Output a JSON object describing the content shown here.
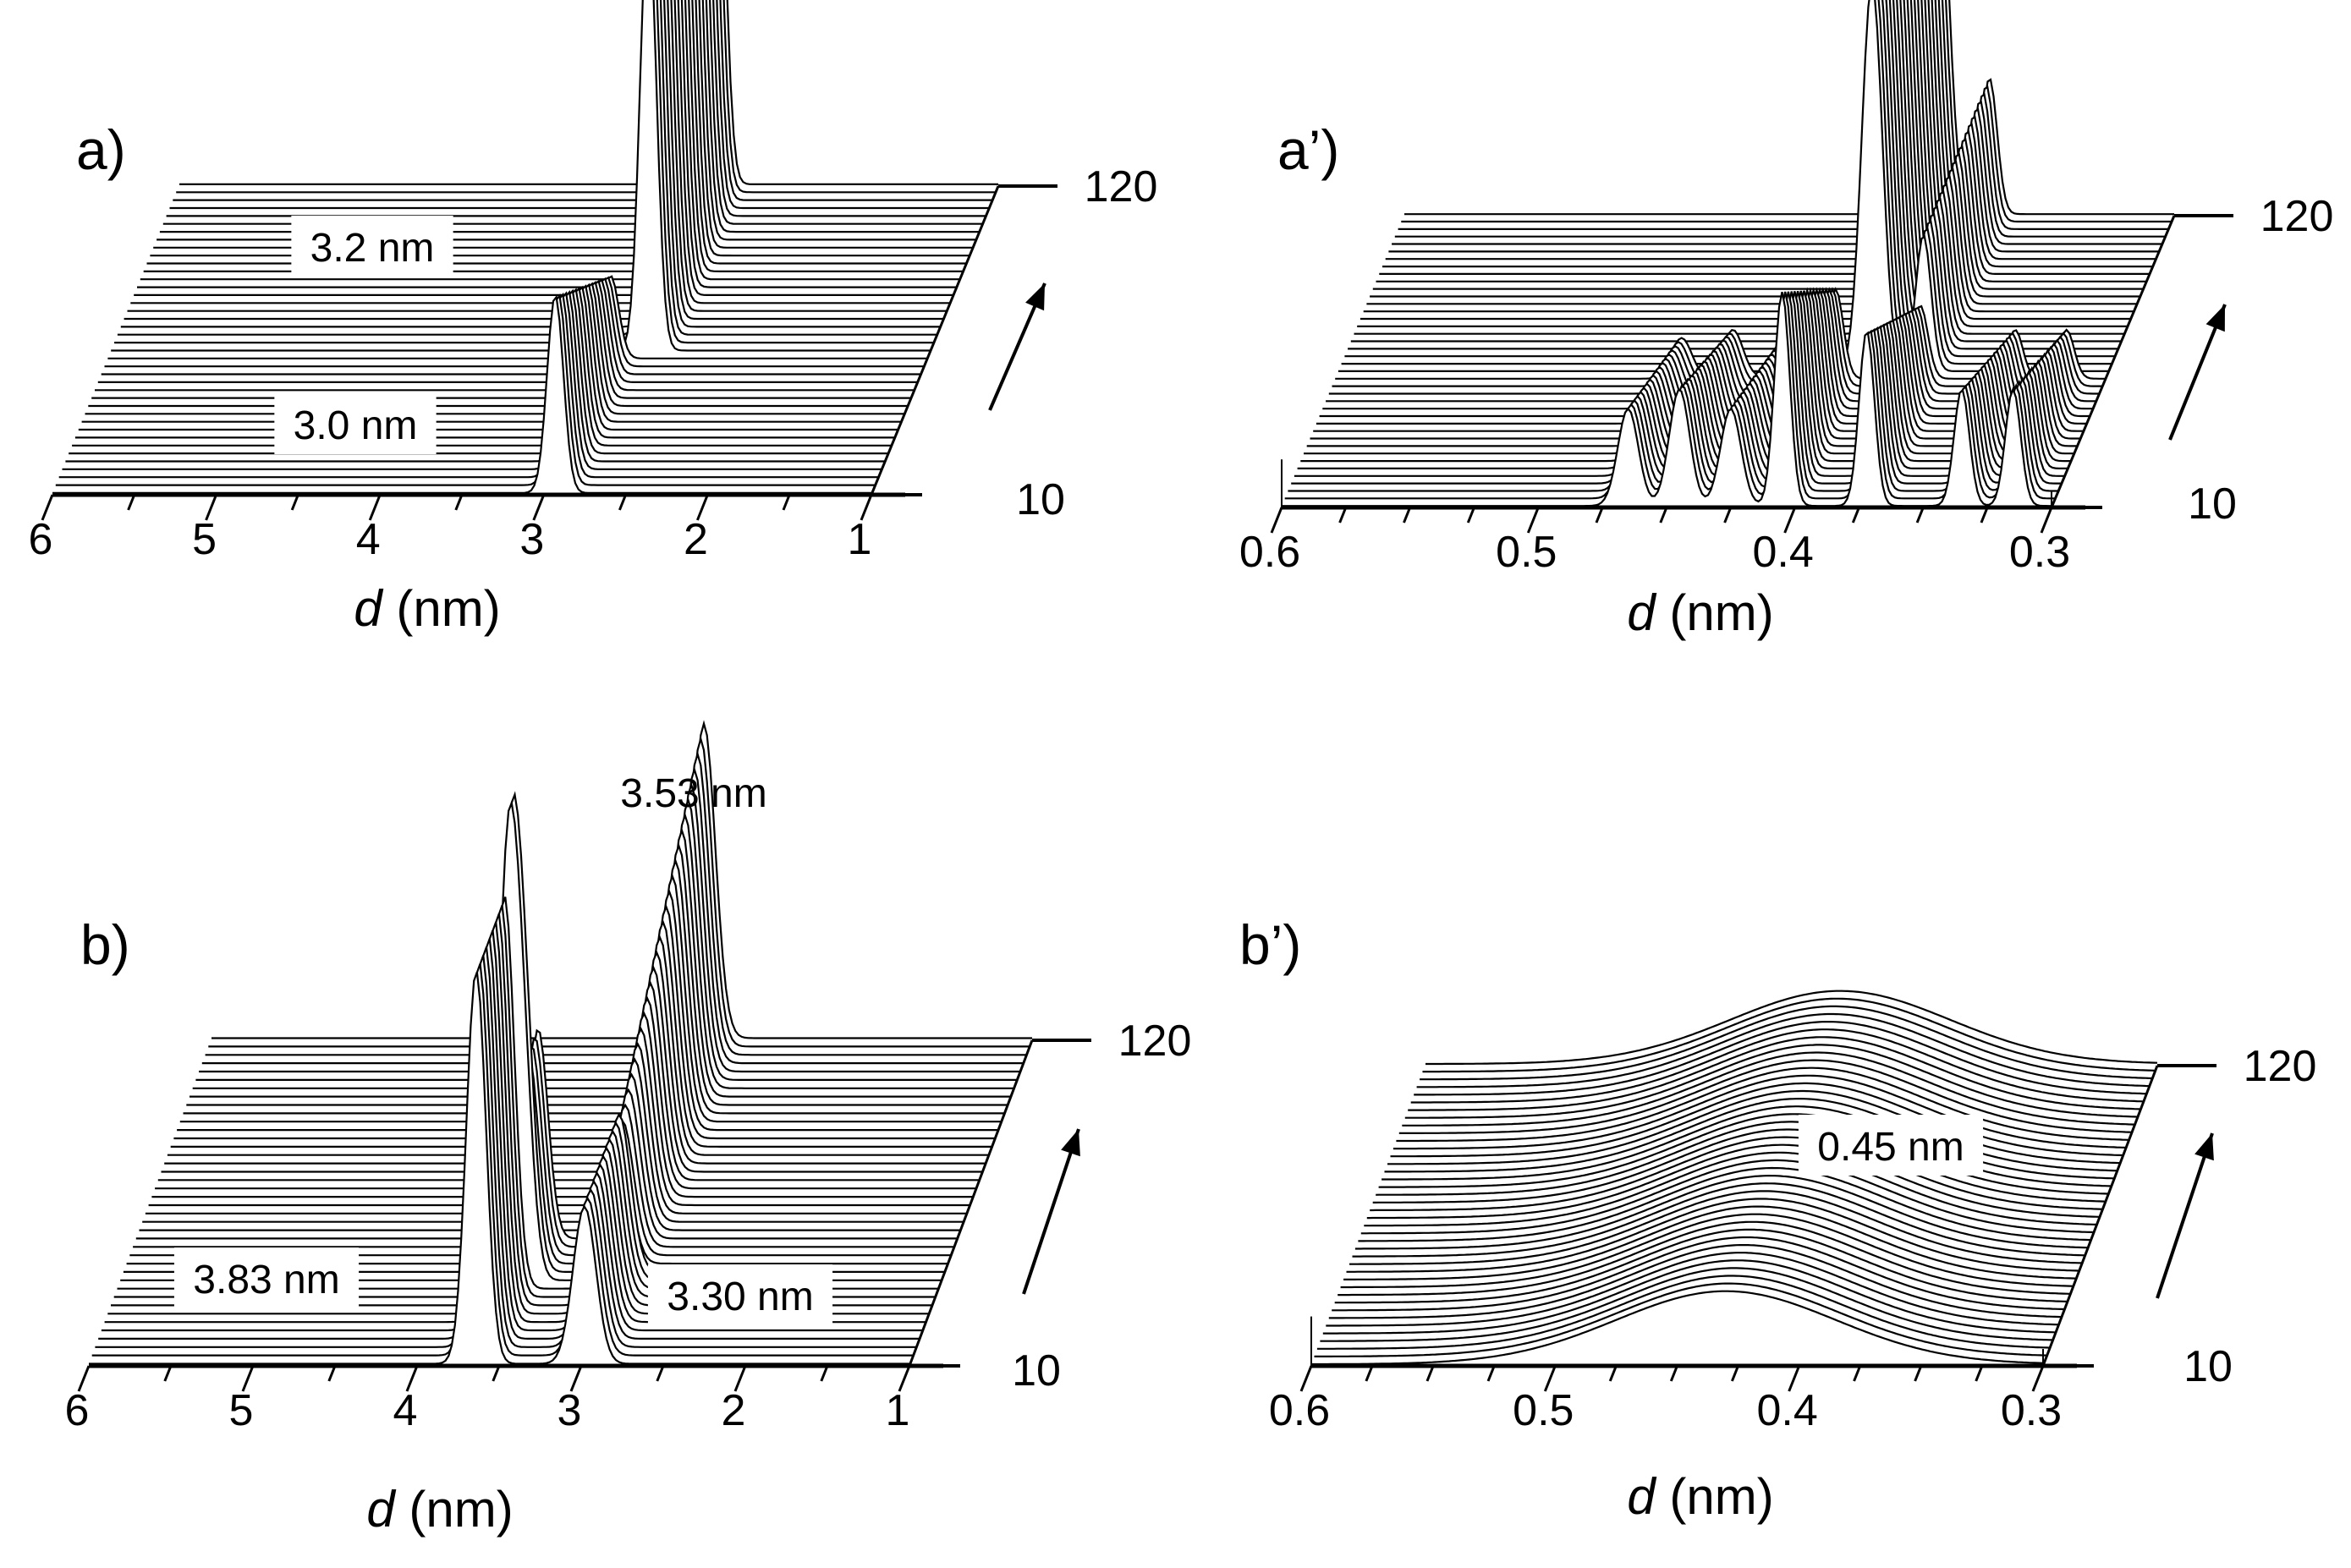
{
  "figure": {
    "axis_unit": "(nm)",
    "axis_var": "d"
  },
  "chart_data": [
    {
      "panel": "a)",
      "type": "waterfall",
      "x": {
        "label": "d (nm)",
        "ticks": [
          6,
          5,
          4,
          3,
          2,
          1
        ],
        "range": [
          6,
          1
        ],
        "minor_step": 0.5
      },
      "z": {
        "ticks": [
          10,
          120
        ],
        "range": [
          10,
          120
        ],
        "arrow": true
      },
      "series_count": 40,
      "peaks": [
        {
          "x": 2.72,
          "width": 0.05,
          "height": 1.0,
          "z_from": 0.45,
          "z_to": 1.0
        },
        {
          "x": 2.93,
          "width": 0.05,
          "height": 0.45,
          "z_from": 0.0,
          "z_to": 0.45,
          "decay": true
        }
      ],
      "annotations": [
        "3.2 nm",
        "3.0 nm"
      ]
    },
    {
      "panel": "a’)",
      "type": "waterfall",
      "x": {
        "label": "d (nm)",
        "ticks": [
          0.6,
          0.5,
          0.4,
          0.3
        ],
        "range": [
          0.6,
          0.3
        ],
        "minor_step": 0.025
      },
      "z": {
        "ticks": [
          10,
          120
        ],
        "range": [
          10,
          120
        ],
        "arrow": true
      },
      "series_count": 40,
      "peaks": [
        {
          "x": 0.392,
          "width": 0.004,
          "height": 1.0,
          "z_from": 0.45,
          "z_to": 1.0
        },
        {
          "x": 0.372,
          "width": 0.003,
          "height": 0.35,
          "z_from": 0.45,
          "z_to": 1.0
        },
        {
          "x": 0.405,
          "width": 0.003,
          "height": 0.55,
          "z_from": 0.0,
          "z_to": 0.45,
          "decay": true
        },
        {
          "x": 0.372,
          "width": 0.003,
          "height": 0.45,
          "z_from": 0.0,
          "z_to": 0.45,
          "decay": true
        },
        {
          "x": 0.445,
          "width": 0.004,
          "height": 0.3,
          "z_from": 0.0,
          "z_to": 0.45,
          "decay": true
        },
        {
          "x": 0.465,
          "width": 0.004,
          "height": 0.25,
          "z_from": 0.0,
          "z_to": 0.45,
          "decay": true
        },
        {
          "x": 0.425,
          "width": 0.004,
          "height": 0.25,
          "z_from": 0.0,
          "z_to": 0.45,
          "decay": true
        },
        {
          "x": 0.335,
          "width": 0.003,
          "height": 0.3,
          "z_from": 0.0,
          "z_to": 0.45,
          "decay": true
        },
        {
          "x": 0.315,
          "width": 0.003,
          "height": 0.3,
          "z_from": 0.0,
          "z_to": 0.45,
          "decay": true
        }
      ],
      "annotations": []
    },
    {
      "panel": "b)",
      "type": "waterfall",
      "x": {
        "label": "d (nm)",
        "ticks": [
          6,
          5,
          4,
          3,
          2,
          1
        ],
        "range": [
          6,
          1
        ],
        "minor_step": 0.5
      },
      "z": {
        "ticks": [
          10,
          120
        ],
        "range": [
          10,
          120
        ],
        "arrow": true
      },
      "series_count": 40,
      "peaks": [
        {
          "x": 3.64,
          "width": 0.06,
          "height": 0.75,
          "z_from": 0.0,
          "z_to": 0.3
        },
        {
          "x": 2.98,
          "width": 0.07,
          "height": 0.3,
          "z_from": 0.0,
          "z_to": 0.3
        },
        {
          "x": 3.0,
          "width": 0.07,
          "height": 0.6,
          "z_from": 0.3,
          "z_to": 1.0,
          "rise": true
        },
        {
          "x": 3.55,
          "width": 0.06,
          "height": 0.4,
          "z_from": 0.25,
          "z_to": 0.4
        }
      ],
      "annotations": [
        "3.53 nm",
        "3.83 nm",
        "3.30 nm"
      ]
    },
    {
      "panel": "b’)",
      "type": "waterfall",
      "x": {
        "label": "d (nm)",
        "ticks": [
          0.6,
          0.5,
          0.4,
          0.3
        ],
        "range": [
          0.6,
          0.3
        ],
        "minor_step": 0.025
      },
      "z": {
        "ticks": [
          10,
          120
        ],
        "range": [
          10,
          120
        ],
        "arrow": true
      },
      "series_count": 40,
      "peaks": [
        {
          "x": 0.43,
          "width": 0.045,
          "height": 0.18,
          "z_from": 0.0,
          "z_to": 1.0,
          "broad": true
        }
      ],
      "annotations": [
        "0.45 nm"
      ]
    }
  ]
}
